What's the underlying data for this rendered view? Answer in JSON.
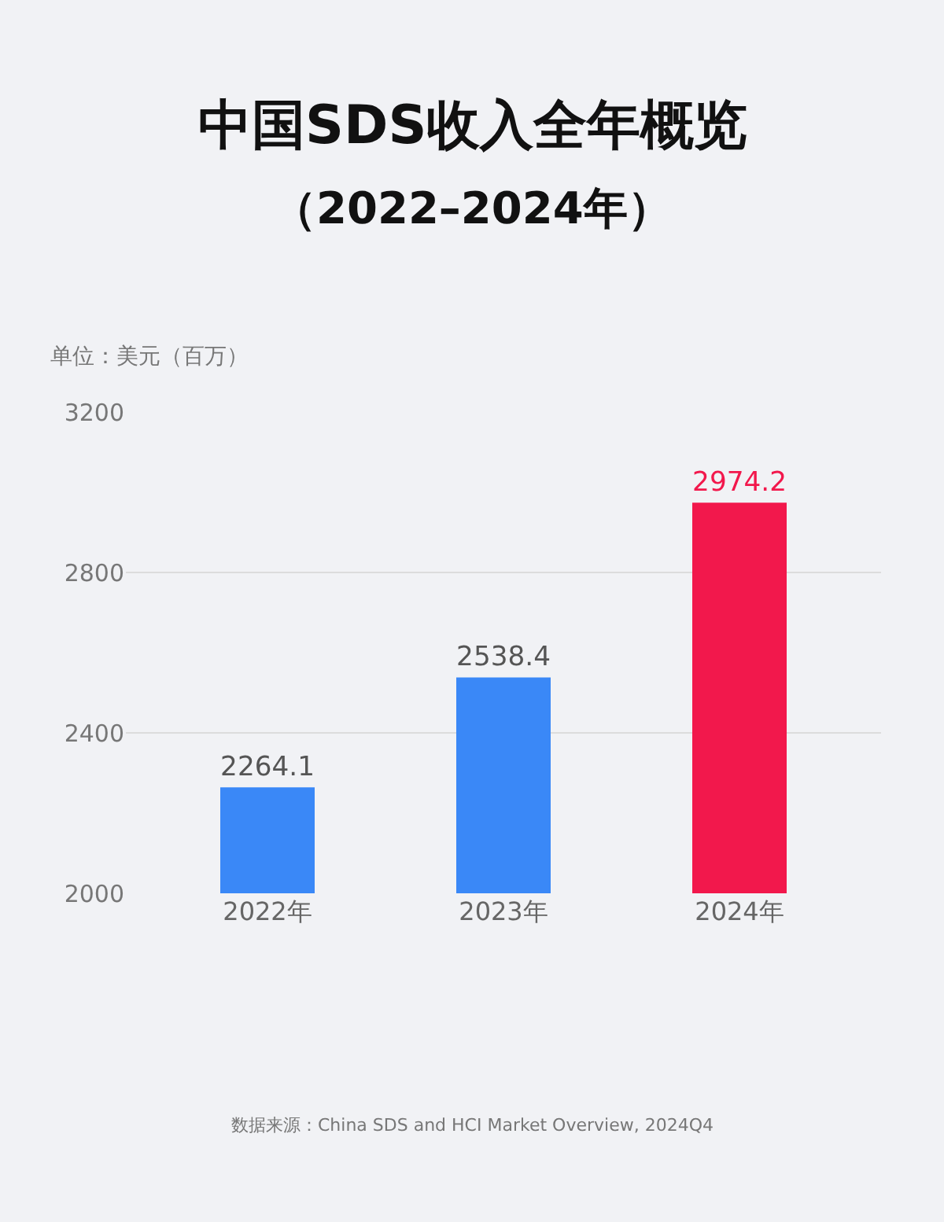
{
  "chart_data": {
    "type": "bar",
    "title": "中国SDS收入全年概览",
    "subtitle": "（2022–2024年）",
    "ylabel": "单位：美元（百万）",
    "categories": [
      "2022年",
      "2023年",
      "2024年"
    ],
    "values": [
      2264.1,
      2538.4,
      2974.2
    ],
    "colors": [
      "#3a88f7",
      "#3a88f7",
      "#f2184c"
    ],
    "ylim": [
      2000,
      3200
    ],
    "yticks": [
      2000,
      2400,
      2800,
      3200
    ],
    "grid": "y",
    "data_labels": true,
    "annotations": [
      "数据来源：China SDS and HCI Market Overview, 2024Q4"
    ]
  }
}
